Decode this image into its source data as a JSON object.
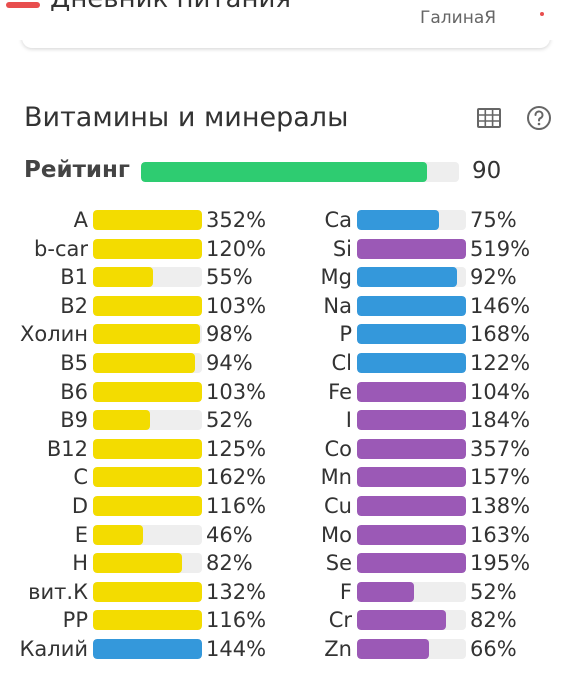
{
  "app": {
    "title": "Дневник питания",
    "user": "ГалинаЯ"
  },
  "section": {
    "title": "Витамины и минералы",
    "table_icon": "table-icon",
    "help_icon": "help-icon"
  },
  "rating": {
    "label": "Рейтинг",
    "value": "90",
    "fraction": 0.9,
    "color": "#2ecc71"
  },
  "colors": {
    "yellow": "#f3dc00",
    "blue": "#3498db",
    "purple": "#9b59b6",
    "track": "#eeeeee"
  },
  "vitamins": [
    {
      "name": "A",
      "pct": "352%",
      "value": 352,
      "color": "#f3dc00"
    },
    {
      "name": "b-car",
      "pct": "120%",
      "value": 120,
      "color": "#f3dc00"
    },
    {
      "name": "B1",
      "pct": "55%",
      "value": 55,
      "color": "#f3dc00"
    },
    {
      "name": "B2",
      "pct": "103%",
      "value": 103,
      "color": "#f3dc00"
    },
    {
      "name": "Холин",
      "pct": "98%",
      "value": 98,
      "color": "#f3dc00"
    },
    {
      "name": "B5",
      "pct": "94%",
      "value": 94,
      "color": "#f3dc00"
    },
    {
      "name": "B6",
      "pct": "103%",
      "value": 103,
      "color": "#f3dc00"
    },
    {
      "name": "B9",
      "pct": "52%",
      "value": 52,
      "color": "#f3dc00"
    },
    {
      "name": "B12",
      "pct": "125%",
      "value": 125,
      "color": "#f3dc00"
    },
    {
      "name": "C",
      "pct": "162%",
      "value": 162,
      "color": "#f3dc00"
    },
    {
      "name": "D",
      "pct": "116%",
      "value": 116,
      "color": "#f3dc00"
    },
    {
      "name": "E",
      "pct": "46%",
      "value": 46,
      "color": "#f3dc00"
    },
    {
      "name": "H",
      "pct": "82%",
      "value": 82,
      "color": "#f3dc00"
    },
    {
      "name": "вит.К",
      "pct": "132%",
      "value": 132,
      "color": "#f3dc00"
    },
    {
      "name": "PP",
      "pct": "116%",
      "value": 116,
      "color": "#f3dc00"
    },
    {
      "name": "Калий",
      "pct": "144%",
      "value": 144,
      "color": "#3498db"
    }
  ],
  "minerals": [
    {
      "name": "Ca",
      "pct": "75%",
      "value": 75,
      "color": "#3498db"
    },
    {
      "name": "Si",
      "pct": "519%",
      "value": 519,
      "color": "#9b59b6"
    },
    {
      "name": "Mg",
      "pct": "92%",
      "value": 92,
      "color": "#3498db"
    },
    {
      "name": "Na",
      "pct": "146%",
      "value": 146,
      "color": "#3498db"
    },
    {
      "name": "P",
      "pct": "168%",
      "value": 168,
      "color": "#3498db"
    },
    {
      "name": "Cl",
      "pct": "122%",
      "value": 122,
      "color": "#3498db"
    },
    {
      "name": "Fe",
      "pct": "104%",
      "value": 104,
      "color": "#9b59b6"
    },
    {
      "name": "I",
      "pct": "184%",
      "value": 184,
      "color": "#9b59b6"
    },
    {
      "name": "Co",
      "pct": "357%",
      "value": 357,
      "color": "#9b59b6"
    },
    {
      "name": "Mn",
      "pct": "157%",
      "value": 157,
      "color": "#9b59b6"
    },
    {
      "name": "Cu",
      "pct": "138%",
      "value": 138,
      "color": "#9b59b6"
    },
    {
      "name": "Mo",
      "pct": "163%",
      "value": 163,
      "color": "#9b59b6"
    },
    {
      "name": "Se",
      "pct": "195%",
      "value": 195,
      "color": "#9b59b6"
    },
    {
      "name": "F",
      "pct": "52%",
      "value": 52,
      "color": "#9b59b6"
    },
    {
      "name": "Cr",
      "pct": "82%",
      "value": 82,
      "color": "#9b59b6"
    },
    {
      "name": "Zn",
      "pct": "66%",
      "value": 66,
      "color": "#9b59b6"
    }
  ]
}
